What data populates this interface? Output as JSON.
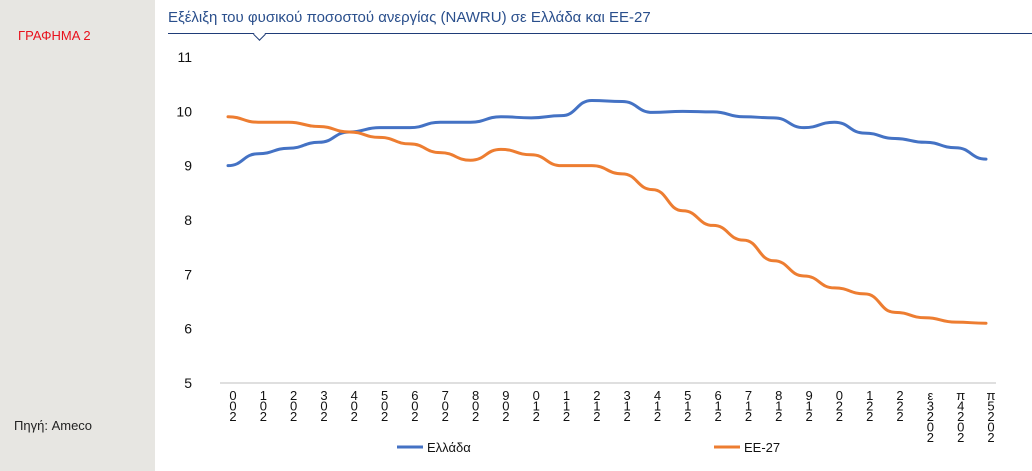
{
  "side_label": "ΓΡΑΦΗΜΑ 2",
  "source": "Πηγή: Ameco",
  "chart_data": {
    "type": "line",
    "title": "Εξέλιξη του φυσικού ποσοστού ανεργίας (NAWRU) σε Ελλάδα και ΕΕ-27",
    "xlabel": "",
    "ylabel": "",
    "x": [
      "2000",
      "2001",
      "2002",
      "2003",
      "2004",
      "2005",
      "2006",
      "2007",
      "2008",
      "2009",
      "2010",
      "2011",
      "2012",
      "2013",
      "2014",
      "2015",
      "2016",
      "2017",
      "2018",
      "2019",
      "2020",
      "2021",
      "2022",
      "2023π",
      "2024π",
      "2025π"
    ],
    "x_tick_labels": [
      "0\n0\n2",
      "1\n0\n2",
      "2\n0\n2",
      "3\n0\n2",
      "4\n0\n2",
      "5\n0\n2",
      "6\n0\n2",
      "7\n0\n2",
      "8\n0\n2",
      "9\n0\n2",
      "0\n1\n2",
      "1\n1\n2",
      "2\n1\n2",
      "3\n1\n2",
      "4\n1\n2",
      "5\n1\n2",
      "6\n1\n2",
      "7\n1\n2",
      "8\n1\n2",
      "9\n1\n2",
      "0\n2\n2",
      "1\n2\n2",
      "2\n2\n2",
      "ε\n3\n2\n0\n2",
      "π\n4\n2\n0\n2",
      "π\n5\n2\n0\n2"
    ],
    "ylim": [
      5,
      11
    ],
    "yticks": [
      5,
      6,
      7,
      8,
      9,
      10,
      11
    ],
    "grid": false,
    "legend_position": "bottom",
    "series": [
      {
        "name": "Ελλάδα",
        "color": "#4472c4",
        "values": [
          9.0,
          9.22,
          9.32,
          9.43,
          9.62,
          9.7,
          9.7,
          9.8,
          9.8,
          9.9,
          9.88,
          9.92,
          10.2,
          10.18,
          9.98,
          10.0,
          9.99,
          9.9,
          9.88,
          9.7,
          9.8,
          9.6,
          9.5,
          9.43,
          9.33,
          9.12
        ]
      },
      {
        "name": "ΕΕ-27",
        "color": "#ed7d31",
        "values": [
          9.9,
          9.8,
          9.8,
          9.72,
          9.62,
          9.52,
          9.4,
          9.24,
          9.1,
          9.3,
          9.2,
          9.0,
          9.0,
          8.85,
          8.56,
          8.17,
          7.9,
          7.63,
          7.25,
          6.97,
          6.75,
          6.64,
          6.3,
          6.2,
          6.12,
          6.1
        ]
      }
    ]
  }
}
